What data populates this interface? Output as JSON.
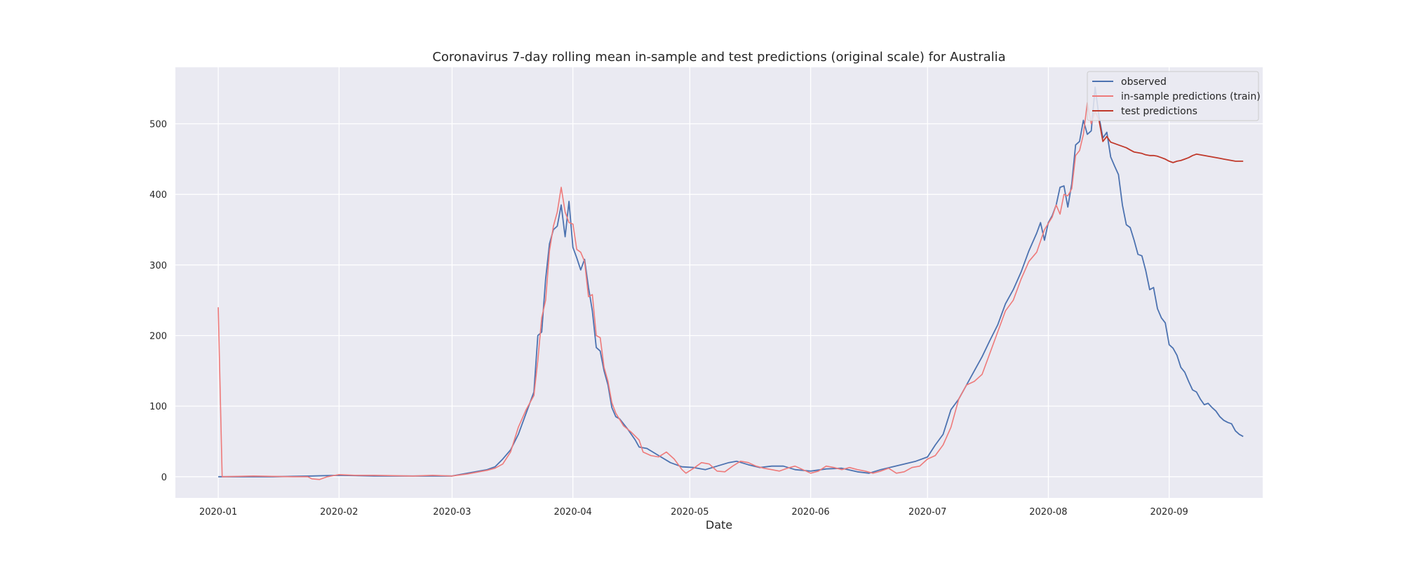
{
  "chart_data": {
    "type": "line",
    "title": "Coronavirus 7-day rolling mean in-sample and test predictions (original scale) for Australia",
    "xlabel": "Date",
    "ylabel": "",
    "x_ticks": [
      "2020-01",
      "2020-02",
      "2020-03",
      "2020-04",
      "2020-05",
      "2020-06",
      "2020-07",
      "2020-08",
      "2020-09"
    ],
    "y_ticks": [
      0,
      100,
      200,
      300,
      400,
      500
    ],
    "xlim": [
      "2019-12-21",
      "2020-09-25"
    ],
    "ylim": [
      -30,
      580
    ],
    "grid": true,
    "legend_position": "top-right",
    "background": "#eaeaf2",
    "series": [
      {
        "name": "observed",
        "color": "#4c72b0",
        "points": [
          [
            "2020-01-01",
            0
          ],
          [
            "2020-01-15",
            0
          ],
          [
            "2020-01-25",
            1
          ],
          [
            "2020-02-01",
            2
          ],
          [
            "2020-02-10",
            1
          ],
          [
            "2020-02-20",
            1
          ],
          [
            "2020-03-01",
            1
          ],
          [
            "2020-03-05",
            5
          ],
          [
            "2020-03-10",
            10
          ],
          [
            "2020-03-12",
            14
          ],
          [
            "2020-03-14",
            25
          ],
          [
            "2020-03-16",
            38
          ],
          [
            "2020-03-18",
            60
          ],
          [
            "2020-03-20",
            90
          ],
          [
            "2020-03-22",
            120
          ],
          [
            "2020-03-23",
            200
          ],
          [
            "2020-03-24",
            205
          ],
          [
            "2020-03-25",
            280
          ],
          [
            "2020-03-26",
            330
          ],
          [
            "2020-03-27",
            350
          ],
          [
            "2020-03-28",
            355
          ],
          [
            "2020-03-29",
            385
          ],
          [
            "2020-03-30",
            340
          ],
          [
            "2020-03-31",
            390
          ],
          [
            "2020-04-01",
            325
          ],
          [
            "2020-04-02",
            310
          ],
          [
            "2020-04-03",
            293
          ],
          [
            "2020-04-04",
            308
          ],
          [
            "2020-04-05",
            268
          ],
          [
            "2020-04-06",
            235
          ],
          [
            "2020-04-07",
            183
          ],
          [
            "2020-04-08",
            178
          ],
          [
            "2020-04-09",
            150
          ],
          [
            "2020-04-10",
            130
          ],
          [
            "2020-04-11",
            98
          ],
          [
            "2020-04-12",
            85
          ],
          [
            "2020-04-13",
            82
          ],
          [
            "2020-04-15",
            68
          ],
          [
            "2020-04-17",
            52
          ],
          [
            "2020-04-18",
            42
          ],
          [
            "2020-04-20",
            40
          ],
          [
            "2020-04-23",
            30
          ],
          [
            "2020-04-26",
            20
          ],
          [
            "2020-04-29",
            14
          ],
          [
            "2020-05-02",
            13
          ],
          [
            "2020-05-05",
            10
          ],
          [
            "2020-05-08",
            15
          ],
          [
            "2020-05-11",
            20
          ],
          [
            "2020-05-13",
            22
          ],
          [
            "2020-05-16",
            17
          ],
          [
            "2020-05-19",
            13
          ],
          [
            "2020-05-22",
            15
          ],
          [
            "2020-05-25",
            15
          ],
          [
            "2020-05-28",
            10
          ],
          [
            "2020-06-01",
            8
          ],
          [
            "2020-06-05",
            11
          ],
          [
            "2020-06-09",
            12
          ],
          [
            "2020-06-13",
            7
          ],
          [
            "2020-06-16",
            5
          ],
          [
            "2020-06-19",
            10
          ],
          [
            "2020-06-22",
            14
          ],
          [
            "2020-06-25",
            18
          ],
          [
            "2020-06-28",
            22
          ],
          [
            "2020-07-01",
            28
          ],
          [
            "2020-07-03",
            45
          ],
          [
            "2020-07-05",
            60
          ],
          [
            "2020-07-07",
            95
          ],
          [
            "2020-07-09",
            110
          ],
          [
            "2020-07-11",
            130
          ],
          [
            "2020-07-13",
            150
          ],
          [
            "2020-07-15",
            170
          ],
          [
            "2020-07-17",
            193
          ],
          [
            "2020-07-19",
            215
          ],
          [
            "2020-07-21",
            245
          ],
          [
            "2020-07-23",
            265
          ],
          [
            "2020-07-25",
            290
          ],
          [
            "2020-07-27",
            320
          ],
          [
            "2020-07-29",
            345
          ],
          [
            "2020-07-30",
            360
          ],
          [
            "2020-07-31",
            335
          ],
          [
            "2020-08-01",
            360
          ],
          [
            "2020-08-02",
            370
          ],
          [
            "2020-08-03",
            385
          ],
          [
            "2020-08-04",
            410
          ],
          [
            "2020-08-05",
            412
          ],
          [
            "2020-08-06",
            382
          ],
          [
            "2020-08-07",
            415
          ],
          [
            "2020-08-08",
            470
          ],
          [
            "2020-08-09",
            475
          ],
          [
            "2020-08-10",
            505
          ],
          [
            "2020-08-11",
            485
          ],
          [
            "2020-08-12",
            490
          ],
          [
            "2020-08-13",
            552
          ],
          [
            "2020-08-14",
            510
          ],
          [
            "2020-08-15",
            480
          ],
          [
            "2020-08-16",
            488
          ],
          [
            "2020-08-17",
            453
          ],
          [
            "2020-08-18",
            440
          ],
          [
            "2020-08-19",
            428
          ],
          [
            "2020-08-20",
            385
          ],
          [
            "2020-08-21",
            357
          ],
          [
            "2020-08-22",
            353
          ],
          [
            "2020-08-23",
            335
          ],
          [
            "2020-08-24",
            315
          ],
          [
            "2020-08-25",
            313
          ],
          [
            "2020-08-26",
            292
          ],
          [
            "2020-08-27",
            265
          ],
          [
            "2020-08-28",
            268
          ],
          [
            "2020-08-29",
            238
          ],
          [
            "2020-08-30",
            225
          ],
          [
            "2020-08-31",
            218
          ],
          [
            "2020-09-01",
            187
          ],
          [
            "2020-09-02",
            182
          ],
          [
            "2020-09-03",
            172
          ],
          [
            "2020-09-04",
            155
          ],
          [
            "2020-09-05",
            148
          ],
          [
            "2020-09-06",
            135
          ],
          [
            "2020-09-07",
            123
          ],
          [
            "2020-09-08",
            120
          ],
          [
            "2020-09-09",
            110
          ],
          [
            "2020-09-10",
            102
          ],
          [
            "2020-09-11",
            104
          ],
          [
            "2020-09-12",
            98
          ],
          [
            "2020-09-13",
            93
          ],
          [
            "2020-09-14",
            85
          ],
          [
            "2020-09-15",
            80
          ],
          [
            "2020-09-16",
            77
          ],
          [
            "2020-09-17",
            75
          ],
          [
            "2020-09-18",
            65
          ],
          [
            "2020-09-19",
            60
          ],
          [
            "2020-09-20",
            57
          ]
        ]
      },
      {
        "name": "in-sample predictions (train)",
        "color": "#ee7a7a",
        "points": [
          [
            "2020-01-01",
            240
          ],
          [
            "2020-01-02",
            0
          ],
          [
            "2020-01-10",
            1
          ],
          [
            "2020-01-20",
            0
          ],
          [
            "2020-01-24",
            0
          ],
          [
            "2020-01-25",
            -3
          ],
          [
            "2020-01-27",
            -4
          ],
          [
            "2020-01-29",
            0
          ],
          [
            "2020-02-01",
            3
          ],
          [
            "2020-02-05",
            2
          ],
          [
            "2020-02-10",
            2
          ],
          [
            "2020-02-20",
            1
          ],
          [
            "2020-02-25",
            2
          ],
          [
            "2020-03-01",
            1
          ],
          [
            "2020-03-05",
            4
          ],
          [
            "2020-03-10",
            9
          ],
          [
            "2020-03-12",
            12
          ],
          [
            "2020-03-14",
            18
          ],
          [
            "2020-03-16",
            35
          ],
          [
            "2020-03-18",
            70
          ],
          [
            "2020-03-20",
            95
          ],
          [
            "2020-03-22",
            115
          ],
          [
            "2020-03-23",
            165
          ],
          [
            "2020-03-24",
            225
          ],
          [
            "2020-03-25",
            250
          ],
          [
            "2020-03-26",
            320
          ],
          [
            "2020-03-27",
            355
          ],
          [
            "2020-03-28",
            375
          ],
          [
            "2020-03-29",
            410
          ],
          [
            "2020-03-30",
            375
          ],
          [
            "2020-03-31",
            360
          ],
          [
            "2020-04-01",
            358
          ],
          [
            "2020-04-02",
            322
          ],
          [
            "2020-04-03",
            318
          ],
          [
            "2020-04-04",
            305
          ],
          [
            "2020-04-05",
            255
          ],
          [
            "2020-04-06",
            258
          ],
          [
            "2020-04-07",
            200
          ],
          [
            "2020-04-08",
            197
          ],
          [
            "2020-04-09",
            155
          ],
          [
            "2020-04-10",
            135
          ],
          [
            "2020-04-11",
            105
          ],
          [
            "2020-04-12",
            90
          ],
          [
            "2020-04-14",
            72
          ],
          [
            "2020-04-16",
            63
          ],
          [
            "2020-04-18",
            52
          ],
          [
            "2020-04-19",
            35
          ],
          [
            "2020-04-21",
            30
          ],
          [
            "2020-04-23",
            28
          ],
          [
            "2020-04-25",
            35
          ],
          [
            "2020-04-27",
            25
          ],
          [
            "2020-04-29",
            10
          ],
          [
            "2020-04-30",
            5
          ],
          [
            "2020-05-02",
            12
          ],
          [
            "2020-05-04",
            20
          ],
          [
            "2020-05-06",
            18
          ],
          [
            "2020-05-08",
            8
          ],
          [
            "2020-05-10",
            7
          ],
          [
            "2020-05-12",
            15
          ],
          [
            "2020-05-14",
            22
          ],
          [
            "2020-05-16",
            20
          ],
          [
            "2020-05-18",
            15
          ],
          [
            "2020-05-20",
            12
          ],
          [
            "2020-05-22",
            10
          ],
          [
            "2020-05-24",
            8
          ],
          [
            "2020-05-26",
            12
          ],
          [
            "2020-05-28",
            15
          ],
          [
            "2020-05-30",
            10
          ],
          [
            "2020-06-01",
            5
          ],
          [
            "2020-06-03",
            8
          ],
          [
            "2020-06-05",
            15
          ],
          [
            "2020-06-07",
            13
          ],
          [
            "2020-06-09",
            10
          ],
          [
            "2020-06-11",
            13
          ],
          [
            "2020-06-13",
            10
          ],
          [
            "2020-06-15",
            8
          ],
          [
            "2020-06-17",
            5
          ],
          [
            "2020-06-19",
            8
          ],
          [
            "2020-06-21",
            12
          ],
          [
            "2020-06-23",
            5
          ],
          [
            "2020-06-25",
            7
          ],
          [
            "2020-06-27",
            13
          ],
          [
            "2020-06-29",
            15
          ],
          [
            "2020-07-01",
            25
          ],
          [
            "2020-07-03",
            30
          ],
          [
            "2020-07-05",
            45
          ],
          [
            "2020-07-07",
            70
          ],
          [
            "2020-07-09",
            110
          ],
          [
            "2020-07-11",
            130
          ],
          [
            "2020-07-13",
            135
          ],
          [
            "2020-07-15",
            145
          ],
          [
            "2020-07-17",
            175
          ],
          [
            "2020-07-19",
            205
          ],
          [
            "2020-07-21",
            235
          ],
          [
            "2020-07-23",
            250
          ],
          [
            "2020-07-25",
            280
          ],
          [
            "2020-07-27",
            305
          ],
          [
            "2020-07-29",
            318
          ],
          [
            "2020-07-31",
            350
          ],
          [
            "2020-08-02",
            368
          ],
          [
            "2020-08-03",
            385
          ],
          [
            "2020-08-04",
            372
          ],
          [
            "2020-08-05",
            400
          ],
          [
            "2020-08-06",
            398
          ],
          [
            "2020-08-07",
            408
          ],
          [
            "2020-08-08",
            455
          ],
          [
            "2020-08-09",
            462
          ],
          [
            "2020-08-10",
            485
          ],
          [
            "2020-08-11",
            530
          ],
          [
            "2020-08-12",
            500
          ],
          [
            "2020-08-13",
            518
          ],
          [
            "2020-08-14",
            505
          ]
        ]
      },
      {
        "name": "test predictions",
        "color": "#c0392b",
        "points": [
          [
            "2020-08-14",
            505
          ],
          [
            "2020-08-15",
            475
          ],
          [
            "2020-08-16",
            482
          ],
          [
            "2020-08-17",
            474
          ],
          [
            "2020-08-18",
            472
          ],
          [
            "2020-08-19",
            470
          ],
          [
            "2020-08-20",
            468
          ],
          [
            "2020-08-21",
            466
          ],
          [
            "2020-08-22",
            463
          ],
          [
            "2020-08-23",
            460
          ],
          [
            "2020-08-24",
            459
          ],
          [
            "2020-08-25",
            458
          ],
          [
            "2020-08-26",
            456
          ],
          [
            "2020-08-27",
            455
          ],
          [
            "2020-08-28",
            455
          ],
          [
            "2020-08-29",
            454
          ],
          [
            "2020-08-30",
            452
          ],
          [
            "2020-08-31",
            450
          ],
          [
            "2020-09-01",
            447
          ],
          [
            "2020-09-02",
            445
          ],
          [
            "2020-09-03",
            447
          ],
          [
            "2020-09-04",
            448
          ],
          [
            "2020-09-05",
            450
          ],
          [
            "2020-09-06",
            452
          ],
          [
            "2020-09-07",
            455
          ],
          [
            "2020-09-08",
            457
          ],
          [
            "2020-09-09",
            456
          ],
          [
            "2020-09-10",
            455
          ],
          [
            "2020-09-11",
            454
          ],
          [
            "2020-09-12",
            453
          ],
          [
            "2020-09-13",
            452
          ],
          [
            "2020-09-14",
            451
          ],
          [
            "2020-09-15",
            450
          ],
          [
            "2020-09-16",
            449
          ],
          [
            "2020-09-17",
            448
          ],
          [
            "2020-09-18",
            447
          ],
          [
            "2020-09-19",
            447
          ],
          [
            "2020-09-20",
            447
          ]
        ]
      }
    ]
  }
}
